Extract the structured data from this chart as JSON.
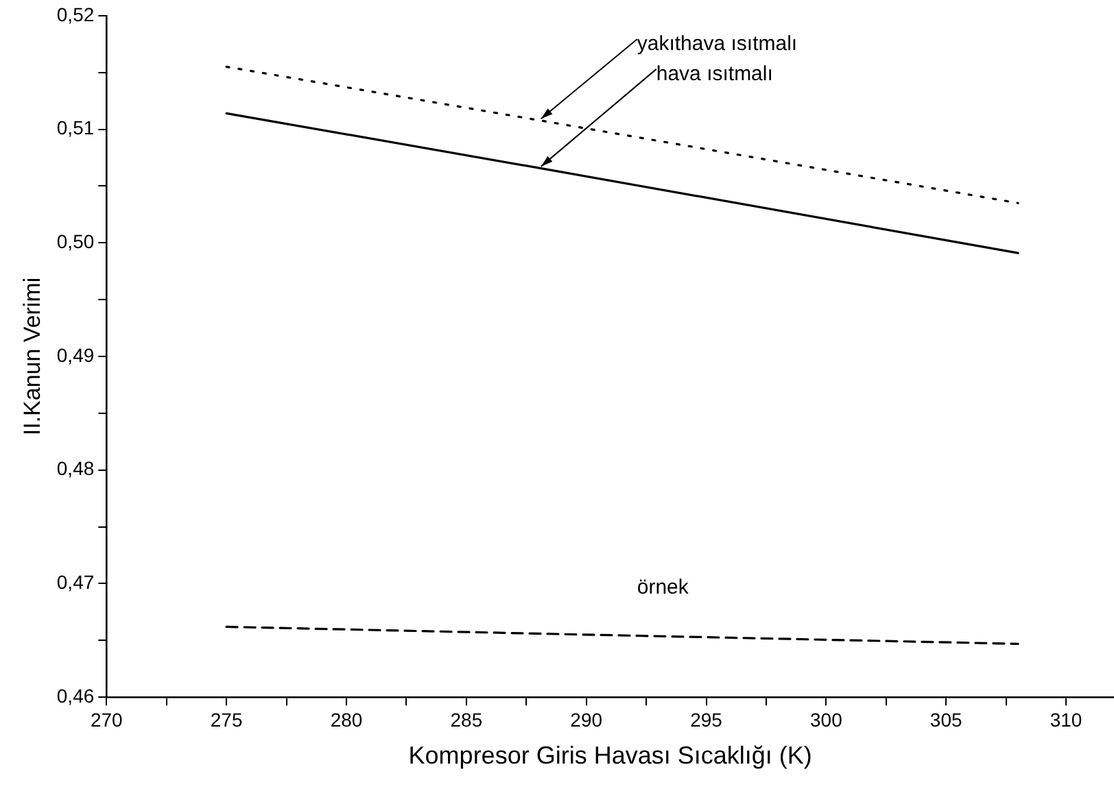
{
  "chart_data": {
    "type": "line",
    "xlabel": "Kompresor Giris Havası Sıcaklığı (K)",
    "ylabel": "II.Kanun Verimi",
    "x": [
      275,
      288,
      308
    ],
    "series": [
      {
        "name": "yakıthava ısıtmalı",
        "color": "#000000",
        "line_style": "dotted",
        "values": [
          0.5155,
          0.5108,
          0.5035
        ]
      },
      {
        "name": "hava ısıtmalı",
        "color": "#000000",
        "line_style": "solid",
        "values": [
          0.5114,
          0.5066,
          0.4991
        ]
      },
      {
        "name": "örnek",
        "color": "#000000",
        "line_style": "dashed",
        "values": [
          0.4662,
          0.4656,
          0.4647
        ]
      }
    ],
    "xlim": [
      270,
      312
    ],
    "xticks": [
      270,
      {
        "value": 272.5,
        "label": null
      },
      275,
      {
        "value": 277.5,
        "label": null
      },
      280,
      {
        "value": 282.5,
        "label": null
      },
      285,
      {
        "value": 287.5,
        "label": null
      },
      290,
      {
        "value": 292.5,
        "label": null
      },
      295,
      {
        "value": 297.5,
        "label": null
      },
      300,
      {
        "value": 302.5,
        "label": null
      },
      305,
      {
        "value": 307.5,
        "label": null
      },
      310
    ],
    "ylim": [
      0.46,
      0.52
    ],
    "yticks": [
      {
        "value": 0.46,
        "label": "0,46"
      },
      {
        "value": 0.465,
        "label": null
      },
      {
        "value": 0.47,
        "label": "0,47"
      },
      {
        "value": 0.475,
        "label": null
      },
      {
        "value": 0.48,
        "label": "0,48"
      },
      {
        "value": 0.485,
        "label": null
      },
      {
        "value": 0.49,
        "label": "0,49"
      },
      {
        "value": 0.495,
        "label": null
      },
      {
        "value": 0.5,
        "label": "0,50"
      },
      {
        "value": 0.505,
        "label": null
      },
      {
        "value": 0.51,
        "label": "0,51"
      },
      {
        "value": 0.515,
        "label": null
      },
      {
        "value": 0.52,
        "label": "0,52"
      }
    ],
    "grid": false,
    "legend": false,
    "marker": "none"
  }
}
